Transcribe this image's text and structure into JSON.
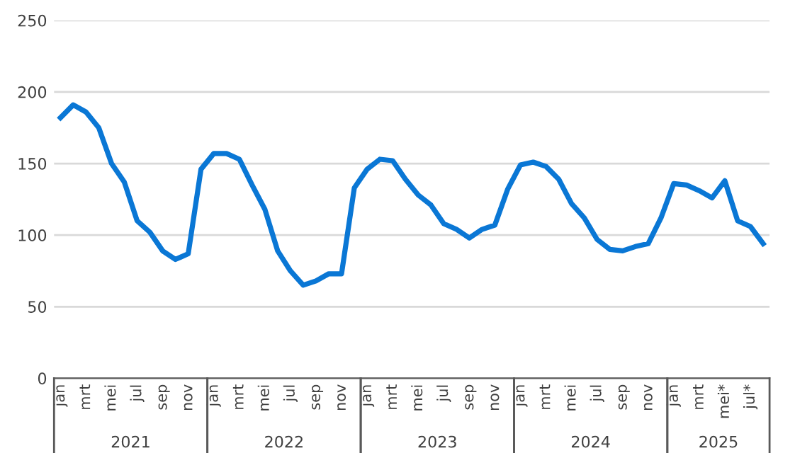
{
  "chart_data": {
    "type": "line",
    "categories": [
      "jan",
      null,
      "mrt",
      null,
      "mei",
      null,
      "jul",
      null,
      "sep",
      null,
      "nov",
      null,
      "jan",
      null,
      "mrt",
      null,
      "mei",
      null,
      "jul",
      null,
      "sep",
      null,
      "nov",
      null,
      "jan",
      null,
      "mrt",
      null,
      "mei",
      null,
      "jul",
      null,
      "sep",
      null,
      "nov",
      null,
      "jan",
      null,
      "mrt",
      null,
      "mei",
      null,
      "jul",
      null,
      "sep",
      null,
      "nov",
      null,
      "jan",
      null,
      "mrt",
      null,
      "mei*",
      null,
      "jul*",
      null
    ],
    "series": [
      {
        "color": "#0a77d5",
        "values": [
          182,
          191,
          186,
          175,
          150,
          137,
          110,
          102,
          89,
          83,
          87,
          146,
          157,
          157,
          153,
          135,
          118,
          89,
          75,
          65,
          68,
          73,
          73,
          133,
          146,
          153,
          152,
          139,
          128,
          121,
          108,
          104,
          98,
          104,
          107,
          132,
          149,
          151,
          148,
          139,
          122,
          112,
          97,
          90,
          89,
          92,
          94,
          112,
          136,
          135,
          131,
          126,
          138,
          110,
          106,
          94
        ]
      }
    ],
    "ylim": [
      0,
      250
    ],
    "yticks": [
      0,
      50,
      100,
      150,
      200,
      250
    ],
    "grid": "y",
    "marker": "none",
    "line_style": "solid",
    "legend": false,
    "annotations": [
      "2021",
      "2022",
      "2023",
      "2024",
      "2025"
    ]
  }
}
